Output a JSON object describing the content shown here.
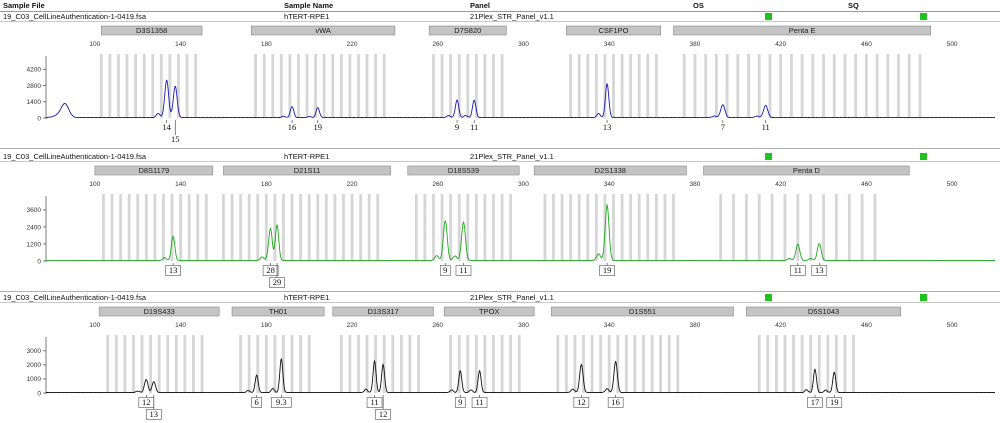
{
  "header": {
    "sample_file": "Sample File",
    "sample_name": "Sample Name",
    "panel": "Panel",
    "os": "OS",
    "sq": "SQ"
  },
  "panels": [
    {
      "sample_file": "19_C03_CellLineAuthentication-1-0419.fsa",
      "sample_name": "hTERT-RPE1",
      "panel_name": "21Plex_STR_Panel_v1.1",
      "color": "#1a1aa8",
      "quality": [
        "pass",
        "pass"
      ]
    },
    {
      "sample_file": "19_C03_CellLineAuthentication-1-0419.fsa",
      "sample_name": "hTERT-RPE1",
      "panel_name": "21Plex_STR_Panel_v1.1",
      "color": "#1ea81e",
      "quality": [
        "pass",
        "pass"
      ]
    },
    {
      "sample_file": "19_C03_CellLineAuthentication-1-0419.fsa",
      "sample_name": "hTERT-RPE1",
      "panel_name": "21Plex_STR_Panel_v1.1",
      "color": "#111111",
      "quality": [
        "pass",
        "pass"
      ]
    }
  ],
  "chart_data": [
    {
      "type": "line",
      "xlim": [
        80,
        520
      ],
      "x_ticks": [
        100,
        140,
        180,
        220,
        260,
        300,
        340,
        380,
        420,
        460,
        500
      ],
      "y_ticks": [
        0,
        1400,
        2800,
        4200
      ],
      "ylim": [
        0,
        5000
      ],
      "markers": [
        {
          "label": "D3S1358",
          "start": 103,
          "end": 150
        },
        {
          "label": "vWA",
          "start": 173,
          "end": 240
        },
        {
          "label": "D7S820",
          "start": 256,
          "end": 292
        },
        {
          "label": "CSF1PO",
          "start": 320,
          "end": 364
        },
        {
          "label": "Penta E",
          "start": 370,
          "end": 490
        }
      ],
      "bins": [
        103,
        107,
        111,
        115,
        119,
        123,
        127,
        131,
        135,
        139,
        143,
        147,
        175,
        179,
        183,
        187,
        191,
        195,
        199,
        203,
        207,
        211,
        215,
        219,
        223,
        227,
        231,
        235,
        258,
        262,
        266,
        270,
        274,
        278,
        282,
        286,
        290,
        322,
        326,
        330,
        334,
        338,
        342,
        346,
        350,
        354,
        358,
        362,
        375,
        380,
        385,
        390,
        395,
        400,
        405,
        410,
        415,
        420,
        425,
        430,
        435,
        440,
        445,
        450,
        455,
        460,
        465,
        470,
        475,
        480,
        485
      ],
      "peaks": [
        {
          "x": 86,
          "height": 1200,
          "width": 1.8,
          "label": ""
        },
        {
          "x": 133.5,
          "height": 2900,
          "width": 0.9,
          "label": "14"
        },
        {
          "x": 137.5,
          "height": 2700,
          "width": 0.9,
          "label": "15"
        },
        {
          "x": 192,
          "height": 950,
          "width": 0.8,
          "label": "16"
        },
        {
          "x": 204,
          "height": 850,
          "width": 0.8,
          "label": "19"
        },
        {
          "x": 269,
          "height": 1500,
          "width": 0.8,
          "label": "9"
        },
        {
          "x": 277,
          "height": 1500,
          "width": 0.8,
          "label": "11"
        },
        {
          "x": 339,
          "height": 2900,
          "width": 0.8,
          "label": "13"
        },
        {
          "x": 393,
          "height": 1100,
          "width": 1.0,
          "label": "7"
        },
        {
          "x": 413,
          "height": 1050,
          "width": 1.0,
          "label": "11"
        }
      ]
    },
    {
      "type": "line",
      "xlim": [
        80,
        520
      ],
      "x_ticks": [
        100,
        140,
        180,
        220,
        260,
        300,
        340,
        380,
        420,
        460,
        500
      ],
      "y_ticks": [
        0,
        1200,
        2400,
        3600
      ],
      "ylim": [
        0,
        4300
      ],
      "markers": [
        {
          "label": "D8S1179",
          "start": 100,
          "end": 155
        },
        {
          "label": "D21S11",
          "start": 160,
          "end": 238
        },
        {
          "label": "D18S539",
          "start": 246,
          "end": 298
        },
        {
          "label": "D2S1338",
          "start": 305,
          "end": 376
        },
        {
          "label": "Penta D",
          "start": 384,
          "end": 480
        }
      ],
      "bins": [
        104,
        108,
        112,
        116,
        120,
        124,
        128,
        132,
        136,
        140,
        144,
        148,
        152,
        160,
        164,
        168,
        172,
        176,
        180,
        184,
        188,
        192,
        196,
        200,
        204,
        208,
        212,
        216,
        220,
        224,
        228,
        232,
        250,
        254,
        258,
        262,
        266,
        270,
        274,
        278,
        282,
        286,
        290,
        294,
        310,
        314,
        318,
        322,
        326,
        330,
        334,
        338,
        342,
        346,
        350,
        354,
        358,
        362,
        366,
        370,
        392,
        398,
        404,
        410,
        416,
        422,
        428,
        434,
        440,
        446,
        452,
        458,
        464
      ],
      "peaks": [
        {
          "x": 136.5,
          "height": 1700,
          "width": 0.8,
          "label": "13"
        },
        {
          "x": 182,
          "height": 2100,
          "width": 0.8,
          "label": "28"
        },
        {
          "x": 185,
          "height": 2500,
          "width": 0.8,
          "label": "29"
        },
        {
          "x": 263.5,
          "height": 2800,
          "width": 0.9,
          "label": "9"
        },
        {
          "x": 272,
          "height": 2700,
          "width": 0.9,
          "label": "11"
        },
        {
          "x": 339,
          "height": 3900,
          "width": 0.9,
          "label": "19"
        },
        {
          "x": 428,
          "height": 1150,
          "width": 0.9,
          "label": "11"
        },
        {
          "x": 438,
          "height": 1200,
          "width": 0.9,
          "label": "13"
        }
      ]
    },
    {
      "type": "line",
      "xlim": [
        80,
        520
      ],
      "x_ticks": [
        100,
        140,
        180,
        220,
        260,
        300,
        340,
        380,
        420,
        460,
        500
      ],
      "y_ticks": [
        0,
        1000,
        2000,
        3000
      ],
      "ylim": [
        0,
        3700
      ],
      "markers": [
        {
          "label": "D19S433",
          "start": 102,
          "end": 158
        },
        {
          "label": "TH01",
          "start": 164,
          "end": 207
        },
        {
          "label": "D13S317",
          "start": 211,
          "end": 258
        },
        {
          "label": "TPOX",
          "start": 263,
          "end": 305
        },
        {
          "label": "D1S551",
          "start": 313,
          "end": 398
        },
        {
          "label": "D5S1043",
          "start": 404,
          "end": 476
        }
      ],
      "bins": [
        106,
        110,
        114,
        118,
        122,
        126,
        130,
        134,
        138,
        142,
        146,
        150,
        168,
        172,
        176,
        180,
        184,
        188,
        192,
        196,
        200,
        215,
        219,
        223,
        227,
        231,
        235,
        239,
        243,
        247,
        251,
        266,
        270,
        274,
        278,
        282,
        286,
        290,
        294,
        298,
        316,
        320,
        324,
        328,
        332,
        336,
        340,
        344,
        348,
        352,
        356,
        360,
        364,
        368,
        372,
        410,
        414,
        418,
        422,
        426,
        430,
        434,
        438,
        442,
        446,
        450,
        454
      ],
      "peaks": [
        {
          "x": 124,
          "height": 850,
          "width": 0.8,
          "label": "12"
        },
        {
          "x": 127.5,
          "height": 780,
          "width": 0.8,
          "label": "13"
        },
        {
          "x": 175.5,
          "height": 1250,
          "width": 0.7,
          "label": "6"
        },
        {
          "x": 187,
          "height": 2400,
          "width": 0.7,
          "label": "9.3"
        },
        {
          "x": 230.5,
          "height": 2000,
          "width": 0.7,
          "label": "11"
        },
        {
          "x": 234.5,
          "height": 2000,
          "width": 0.7,
          "label": "12"
        },
        {
          "x": 270.5,
          "height": 1550,
          "width": 0.7,
          "label": "9"
        },
        {
          "x": 279.5,
          "height": 1550,
          "width": 0.7,
          "label": "11"
        },
        {
          "x": 327,
          "height": 2000,
          "width": 0.8,
          "label": "12"
        },
        {
          "x": 343,
          "height": 2200,
          "width": 0.8,
          "label": "16"
        },
        {
          "x": 436,
          "height": 1650,
          "width": 0.7,
          "label": "17"
        },
        {
          "x": 445,
          "height": 1450,
          "width": 0.7,
          "label": "19"
        }
      ]
    }
  ]
}
